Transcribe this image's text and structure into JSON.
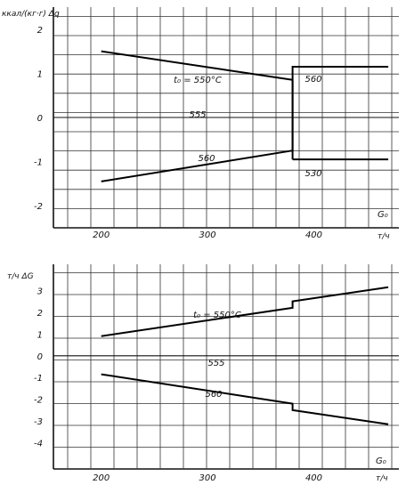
{
  "chart_data": [
    {
      "type": "line",
      "ylabel": "ккал/(кг·г) Δq",
      "xlabel": "G₀",
      "xunit": "т/ч",
      "xlim": [
        155,
        480
      ],
      "ylim": [
        -2.5,
        2.5
      ],
      "xticks": [
        200,
        300,
        400
      ],
      "yticks": [
        -2,
        -1,
        0,
        1,
        2
      ],
      "grid": true,
      "series": [
        {
          "name": "t₀ = 550°C",
          "x": [
            200,
            380
          ],
          "y": [
            1.5,
            0.85
          ]
        },
        {
          "name": "560",
          "x": [
            200,
            380,
            380,
            470
          ],
          "y": [
            -1.45,
            -0.75,
            1.15,
            1.15
          ]
        },
        {
          "name": "555",
          "x": [
            380,
            380
          ],
          "y": [
            0.85,
            -0.95
          ]
        },
        {
          "name": "530",
          "x": [
            380,
            470
          ],
          "y": [
            -0.95,
            -0.95
          ]
        }
      ],
      "annotations": [
        "t₀ = 550°C",
        "560",
        "555",
        "560",
        "530"
      ]
    },
    {
      "type": "line",
      "ylabel": "т/ч ΔG",
      "xlabel": "G₀",
      "xunit": "т/ч",
      "xlim": [
        155,
        480
      ],
      "ylim": [
        -5.2,
        4.2
      ],
      "xticks": [
        200,
        300,
        400
      ],
      "yticks": [
        -4,
        -3,
        -2,
        -1,
        0,
        1,
        2,
        3
      ],
      "grid": true,
      "series": [
        {
          "name": "t₀ = 550°C",
          "x": [
            200,
            380,
            380,
            470
          ],
          "y": [
            0.9,
            2.2,
            2.5,
            3.15
          ]
        },
        {
          "name": "560",
          "x": [
            200,
            380,
            380,
            470
          ],
          "y": [
            -0.85,
            -2.2,
            -2.5,
            -3.15
          ]
        }
      ],
      "annotations": [
        "t₀ = 550°C",
        "555",
        "560"
      ]
    }
  ]
}
